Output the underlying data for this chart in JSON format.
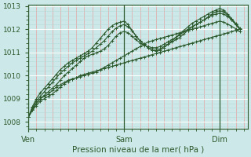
{
  "title": "Pression niveau de la mer( hPa )",
  "bg_color": "#cce8e8",
  "grid_color_major": "#ffffff",
  "grid_minor_x_color": "#e8a0a0",
  "grid_minor_y_color": "#b8d8d8",
  "line_color": "#2d5a2d",
  "tick_label_color": "#2d5a2d",
  "ymin": 1008,
  "ymax": 1013,
  "yticks": [
    1008,
    1009,
    1010,
    1011,
    1012,
    1013
  ],
  "xtick_labels": [
    "Ven",
    "Sam",
    "Dim"
  ],
  "xtick_positions": [
    0,
    48,
    96
  ],
  "vline_positions": [
    0,
    48,
    96
  ],
  "xlim_max": 110,
  "series_x": [
    [
      0,
      2,
      4,
      6,
      8,
      10,
      12,
      14,
      16,
      18,
      20,
      22,
      24,
      26,
      28,
      30,
      32,
      34,
      36,
      38,
      40,
      42,
      44,
      46,
      48,
      50,
      52,
      54,
      56,
      58,
      60,
      62,
      64,
      66,
      68,
      70,
      72,
      74,
      76,
      78,
      80,
      82,
      84,
      86,
      88,
      90,
      92,
      94,
      96,
      98,
      100,
      102,
      104,
      106
    ],
    [
      0,
      2,
      4,
      6,
      8,
      10,
      12,
      14,
      16,
      18,
      20,
      22,
      24,
      26,
      28,
      30,
      32,
      34,
      36,
      38,
      40,
      42,
      44,
      46,
      48,
      50,
      52,
      54,
      56,
      58,
      60,
      62,
      64,
      66,
      68,
      70,
      72,
      74,
      76,
      78,
      80,
      82,
      84,
      86,
      88,
      90,
      92,
      94,
      96,
      98,
      100,
      102,
      104,
      106
    ],
    [
      0,
      2,
      4,
      6,
      8,
      10,
      12,
      14,
      16,
      18,
      20,
      22,
      24,
      26,
      28,
      30,
      32,
      34,
      36,
      38,
      40,
      42,
      44,
      46,
      48,
      50,
      52,
      54,
      56,
      58,
      60,
      62,
      64,
      66,
      68,
      70,
      72,
      74,
      76,
      78,
      80,
      82,
      84,
      86,
      88,
      90,
      92,
      94,
      96,
      98,
      100,
      102,
      104,
      106
    ],
    [
      0,
      2,
      4,
      6,
      8,
      10,
      12,
      14,
      16,
      18,
      20,
      22,
      24,
      26,
      28,
      30,
      32,
      34,
      36,
      38,
      40,
      42,
      44,
      46,
      48,
      50,
      52,
      54,
      56,
      58,
      60,
      62,
      64,
      66,
      68,
      70,
      72,
      74,
      76,
      78,
      80,
      82,
      84,
      86,
      88,
      90,
      92,
      94,
      96,
      98,
      100,
      102,
      104,
      106
    ],
    [
      0,
      2,
      4,
      6,
      8,
      10,
      12,
      14,
      16,
      18,
      20,
      22,
      24,
      26,
      28,
      30,
      32,
      34,
      36,
      38,
      40,
      42,
      44,
      46,
      48,
      50,
      52,
      54,
      56,
      58,
      60,
      62,
      64,
      66,
      68,
      70,
      72,
      74,
      76,
      78,
      80,
      82,
      84,
      86,
      88,
      90,
      92,
      94,
      96,
      98,
      100,
      102,
      104,
      106
    ]
  ],
  "series_y": [
    [
      1008.2,
      1008.5,
      1008.7,
      1008.9,
      1009.0,
      1009.1,
      1009.2,
      1009.35,
      1009.5,
      1009.65,
      1009.75,
      1009.85,
      1009.9,
      1010.0,
      1010.05,
      1010.1,
      1010.15,
      1010.2,
      1010.25,
      1010.3,
      1010.35,
      1010.4,
      1010.45,
      1010.5,
      1010.55,
      1010.6,
      1010.65,
      1010.7,
      1010.75,
      1010.8,
      1010.85,
      1010.9,
      1010.95,
      1011.0,
      1011.05,
      1011.1,
      1011.15,
      1011.2,
      1011.25,
      1011.3,
      1011.35,
      1011.4,
      1011.45,
      1011.5,
      1011.55,
      1011.6,
      1011.65,
      1011.7,
      1011.75,
      1011.8,
      1011.85,
      1011.9,
      1011.95,
      1012.0
    ],
    [
      1008.2,
      1008.55,
      1008.8,
      1009.0,
      1009.15,
      1009.3,
      1009.45,
      1009.6,
      1009.8,
      1010.0,
      1010.15,
      1010.3,
      1010.45,
      1010.6,
      1010.75,
      1010.85,
      1010.92,
      1010.98,
      1011.05,
      1011.15,
      1011.3,
      1011.5,
      1011.7,
      1011.85,
      1011.9,
      1011.85,
      1011.7,
      1011.55,
      1011.4,
      1011.3,
      1011.25,
      1011.2,
      1011.2,
      1011.25,
      1011.35,
      1011.45,
      1011.55,
      1011.65,
      1011.75,
      1011.9,
      1012.0,
      1012.1,
      1012.2,
      1012.3,
      1012.4,
      1012.5,
      1012.6,
      1012.65,
      1012.7,
      1012.65,
      1012.55,
      1012.4,
      1012.2,
      1012.0
    ],
    [
      1008.2,
      1008.6,
      1008.9,
      1009.1,
      1009.3,
      1009.5,
      1009.7,
      1009.9,
      1010.1,
      1010.25,
      1010.4,
      1010.55,
      1010.65,
      1010.75,
      1010.85,
      1010.95,
      1011.05,
      1011.2,
      1011.35,
      1011.5,
      1011.7,
      1011.9,
      1012.05,
      1012.15,
      1012.2,
      1012.1,
      1011.95,
      1011.7,
      1011.5,
      1011.35,
      1011.2,
      1011.1,
      1011.1,
      1011.15,
      1011.25,
      1011.35,
      1011.45,
      1011.55,
      1011.65,
      1011.8,
      1011.95,
      1012.1,
      1012.2,
      1012.3,
      1012.4,
      1012.52,
      1012.65,
      1012.75,
      1012.8,
      1012.75,
      1012.6,
      1012.4,
      1012.2,
      1012.0
    ],
    [
      1008.2,
      1008.65,
      1009.0,
      1009.25,
      1009.45,
      1009.65,
      1009.85,
      1010.05,
      1010.25,
      1010.4,
      1010.55,
      1010.65,
      1010.75,
      1010.85,
      1010.95,
      1011.05,
      1011.2,
      1011.4,
      1011.6,
      1011.8,
      1012.0,
      1012.15,
      1012.25,
      1012.3,
      1012.35,
      1012.2,
      1011.95,
      1011.7,
      1011.5,
      1011.35,
      1011.2,
      1011.1,
      1011.05,
      1011.1,
      1011.2,
      1011.35,
      1011.5,
      1011.65,
      1011.8,
      1011.95,
      1012.1,
      1012.25,
      1012.35,
      1012.45,
      1012.55,
      1012.65,
      1012.75,
      1012.82,
      1012.9,
      1012.82,
      1012.65,
      1012.45,
      1012.25,
      1012.05
    ],
    [
      1008.2,
      1008.5,
      1008.8,
      1009.0,
      1009.1,
      1009.2,
      1009.35,
      1009.5,
      1009.6,
      1009.7,
      1009.8,
      1009.85,
      1009.9,
      1009.95,
      1010.0,
      1010.05,
      1010.1,
      1010.15,
      1010.25,
      1010.35,
      1010.45,
      1010.55,
      1010.65,
      1010.75,
      1010.85,
      1010.95,
      1011.05,
      1011.15,
      1011.25,
      1011.35,
      1011.45,
      1011.5,
      1011.55,
      1011.6,
      1011.65,
      1011.7,
      1011.75,
      1011.8,
      1011.85,
      1011.9,
      1011.95,
      1012.0,
      1012.05,
      1012.1,
      1012.15,
      1012.2,
      1012.25,
      1012.3,
      1012.35,
      1012.3,
      1012.22,
      1012.12,
      1012.02,
      1011.9
    ]
  ]
}
